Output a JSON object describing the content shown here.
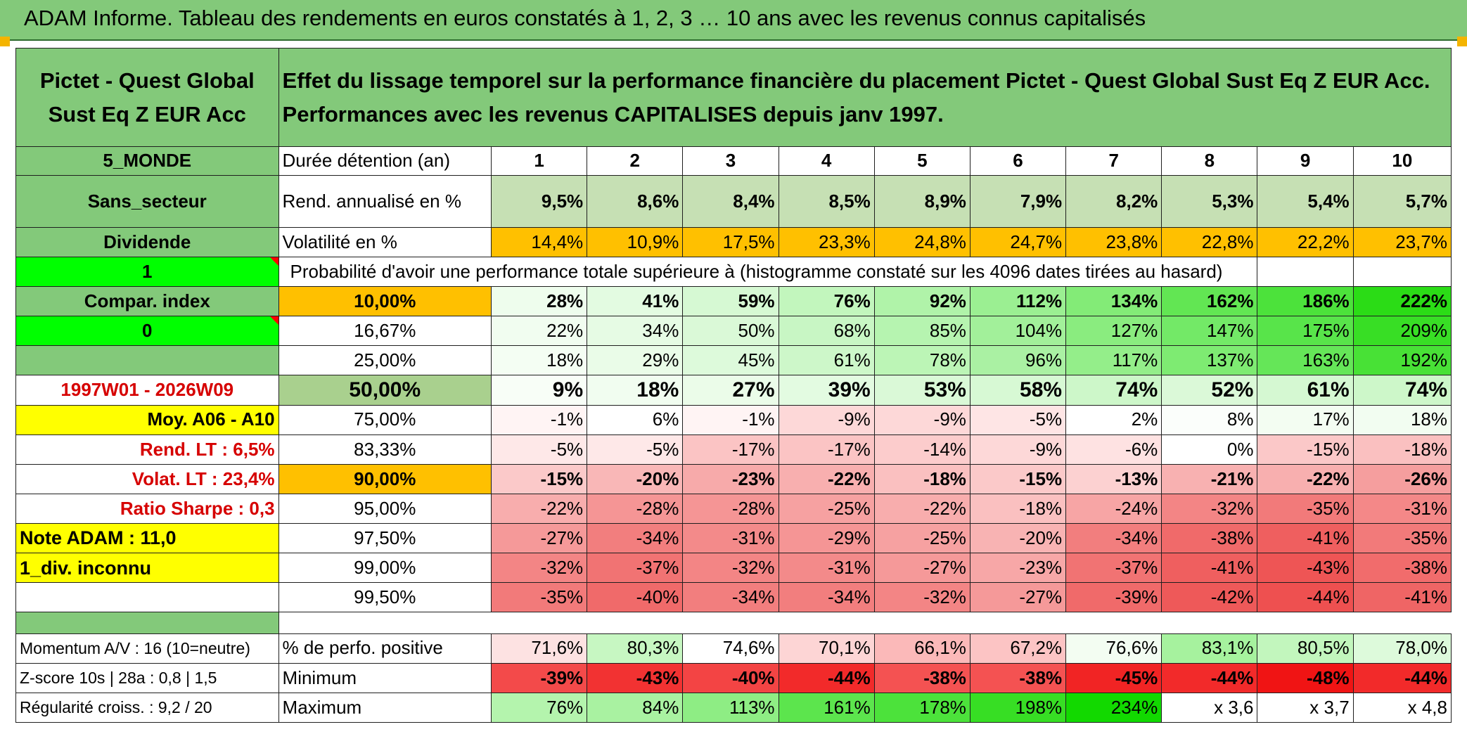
{
  "title": "ADAM Informe. Tableau des rendements en euros constatés à 1, 2, 3 … 10 ans avec les revenus connus capitalisés",
  "fund": {
    "name": "Pictet - Quest Global Sust Eq Z EUR Acc"
  },
  "header": {
    "description": "Effet du lissage temporel sur la performance financière du placement Pictet - Quest Global Sust Eq Z EUR Acc. Performances avec les revenus CAPITALISES depuis janv 1997."
  },
  "side": {
    "zone": "5_MONDE",
    "sector": "Sans_secteur",
    "income": "Dividende",
    "flag1": "1",
    "compar": "Compar. index",
    "flag0": "0",
    "period": "1997W01 - 2026W09",
    "avg": "Moy. A06 - A10",
    "rend_lt": "Rend. LT :   6,5%",
    "volat_lt": "Volat. LT :   23,4%",
    "sharpe": "Ratio Sharpe :   0,3",
    "note": "Note ADAM : 11,0",
    "div": "1_div. inconnu",
    "momentum": "Momentum A/V : 16 (10=neutre)",
    "zscore": "Z-score 10s | 28a : 0,8 | 1,5",
    "regularite": "Régularité croiss. : 9,2 / 20"
  },
  "table": {
    "duration_label": "Durée détention (an)",
    "durations": [
      "1",
      "2",
      "3",
      "4",
      "5",
      "6",
      "7",
      "8",
      "9",
      "10"
    ],
    "rend_label": "Rend. annualisé en %",
    "rend": [
      "9,5%",
      "8,6%",
      "8,4%",
      "8,5%",
      "8,9%",
      "7,9%",
      "8,2%",
      "5,3%",
      "5,4%",
      "5,7%"
    ],
    "vol_label": "Volatilité en %",
    "vol": [
      "14,4%",
      "10,9%",
      "17,5%",
      "23,3%",
      "24,8%",
      "24,7%",
      "23,8%",
      "22,8%",
      "22,2%",
      "23,7%"
    ],
    "prob_label": "Probabilité d'avoir une performance totale supérieure à (histogramme constaté sur les 4096 dates tirées au hasard)",
    "pct_rows": [
      {
        "label": "10,00%",
        "values": [
          "28%",
          "41%",
          "59%",
          "76%",
          "92%",
          "112%",
          "134%",
          "162%",
          "186%",
          "222%"
        ]
      },
      {
        "label": "16,67%",
        "values": [
          "22%",
          "34%",
          "50%",
          "68%",
          "85%",
          "104%",
          "127%",
          "147%",
          "175%",
          "209%"
        ]
      },
      {
        "label": "25,00%",
        "values": [
          "18%",
          "29%",
          "45%",
          "61%",
          "78%",
          "96%",
          "117%",
          "137%",
          "163%",
          "192%"
        ]
      },
      {
        "label": "50,00%",
        "values": [
          "9%",
          "18%",
          "27%",
          "39%",
          "53%",
          "58%",
          "74%",
          "52%",
          "61%",
          "74%"
        ]
      },
      {
        "label": "75,00%",
        "values": [
          "-1%",
          "6%",
          "-1%",
          "-9%",
          "-9%",
          "-5%",
          "2%",
          "8%",
          "17%",
          "18%"
        ]
      },
      {
        "label": "83,33%",
        "values": [
          "-5%",
          "-5%",
          "-17%",
          "-17%",
          "-14%",
          "-9%",
          "-6%",
          "0%",
          "-15%",
          "-18%"
        ]
      },
      {
        "label": "90,00%",
        "values": [
          "-15%",
          "-20%",
          "-23%",
          "-22%",
          "-18%",
          "-15%",
          "-13%",
          "-21%",
          "-22%",
          "-26%"
        ]
      },
      {
        "label": "95,00%",
        "values": [
          "-22%",
          "-28%",
          "-28%",
          "-25%",
          "-22%",
          "-18%",
          "-24%",
          "-32%",
          "-35%",
          "-31%"
        ]
      },
      {
        "label": "97,50%",
        "values": [
          "-27%",
          "-34%",
          "-31%",
          "-29%",
          "-25%",
          "-20%",
          "-34%",
          "-38%",
          "-41%",
          "-35%"
        ]
      },
      {
        "label": "99,00%",
        "values": [
          "-32%",
          "-37%",
          "-32%",
          "-31%",
          "-27%",
          "-23%",
          "-37%",
          "-41%",
          "-43%",
          "-38%"
        ]
      },
      {
        "label": "99,50%",
        "values": [
          "-35%",
          "-40%",
          "-34%",
          "-34%",
          "-32%",
          "-27%",
          "-39%",
          "-42%",
          "-44%",
          "-41%"
        ]
      }
    ],
    "positive_label": "% de perfo. positive",
    "positive": [
      "71,6%",
      "80,3%",
      "74,6%",
      "70,1%",
      "66,1%",
      "67,2%",
      "76,6%",
      "83,1%",
      "80,5%",
      "78,0%"
    ],
    "min_label": "Minimum",
    "min": [
      "-39%",
      "-43%",
      "-40%",
      "-44%",
      "-38%",
      "-38%",
      "-45%",
      "-44%",
      "-48%",
      "-44%"
    ],
    "max_label": "Maximum",
    "max": [
      "76%",
      "84%",
      "113%",
      "161%",
      "178%",
      "198%",
      "234%",
      "x 3,6",
      "x 3,7",
      "x 4,8"
    ]
  },
  "colors": {
    "header_green": "#83c97a",
    "bright_green": "#00ff00",
    "yellow": "#ffff00",
    "orange": "#ffc000",
    "dark_red": "#ff0000",
    "text_red": "#d60000"
  }
}
